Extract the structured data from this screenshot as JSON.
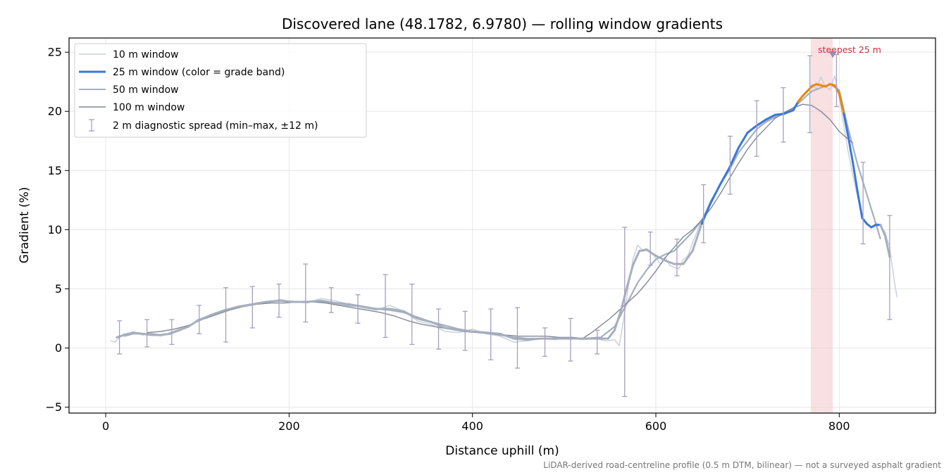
{
  "chart_data": {
    "type": "line",
    "title": "Discovered lane (48.1782, 6.9780) — rolling window gradients",
    "xlabel": "Distance uphill (m)",
    "ylabel": "Gradient (%)",
    "xlim": [
      -40,
      905
    ],
    "ylim": [
      -5.5,
      26.2
    ],
    "x_ticks": [
      0,
      200,
      400,
      600,
      800
    ],
    "y_ticks": [
      -5,
      0,
      5,
      10,
      15,
      20,
      25
    ],
    "y_tick_labels": [
      "−5",
      "0",
      "5",
      "10",
      "15",
      "20",
      "25"
    ],
    "grid": true,
    "legend_position": "top-left",
    "legend": [
      "10 m window",
      "25 m window (color = grade band)",
      "50 m window",
      "100 m window",
      "2 m diagnostic spread (min–max, ±12 m)"
    ],
    "colors": {
      "w10": "#c7ced9",
      "w25": "#3a78d6",
      "w25_high": "#e8890a",
      "w50": "#a6afbf",
      "w100": "#818894",
      "errorbar": "#a69fc0",
      "band": "#f2c2c8",
      "annotation": "#c8323c"
    },
    "steepest_band": {
      "x_start": 769,
      "x_end": 793,
      "label": "steepest 25 m",
      "marker_x": 793,
      "marker_y": 24.8
    },
    "series": [
      {
        "name": "10 m window",
        "x": [
          5,
          10,
          15,
          20,
          30,
          40,
          50,
          60,
          70,
          80,
          90,
          100,
          115,
          130,
          145,
          160,
          175,
          190,
          205,
          220,
          235,
          250,
          265,
          280,
          295,
          310,
          325,
          340,
          355,
          370,
          385,
          400,
          415,
          430,
          445,
          460,
          475,
          490,
          505,
          520,
          535,
          545,
          555,
          560,
          565,
          570,
          575,
          580,
          585,
          590,
          595,
          600,
          605,
          610,
          615,
          620,
          625,
          630,
          635,
          640,
          650,
          660,
          670,
          680,
          690,
          700,
          710,
          720,
          730,
          740,
          750,
          760,
          765,
          770,
          775,
          780,
          785,
          790,
          795,
          800,
          805,
          810,
          815,
          820,
          825,
          830,
          835,
          840,
          845,
          850,
          855,
          860,
          863
        ],
        "y": [
          0.6,
          0.5,
          0.9,
          1.2,
          1.3,
          1.1,
          1.2,
          1.0,
          1.3,
          1.6,
          1.8,
          2.4,
          2.8,
          3.2,
          3.5,
          3.7,
          3.8,
          4.1,
          3.9,
          3.8,
          4.2,
          4.0,
          3.7,
          3.4,
          3.2,
          3.6,
          3.1,
          2.3,
          2.0,
          1.4,
          1.3,
          1.6,
          1.2,
          1.0,
          0.5,
          0.6,
          0.8,
          0.7,
          0.9,
          0.7,
          0.8,
          0.6,
          0.7,
          0.2,
          2.5,
          5.2,
          7.5,
          8.7,
          8.3,
          8.4,
          8.1,
          7.6,
          7.1,
          7.7,
          7.0,
          6.8,
          6.7,
          7.5,
          7.8,
          8.9,
          10.8,
          12.5,
          13.7,
          15.2,
          16.9,
          18.2,
          18.7,
          19.2,
          19.6,
          19.9,
          20.3,
          21.2,
          21.6,
          22.3,
          21.9,
          22.9,
          22.1,
          21.8,
          23.0,
          21.2,
          18.8,
          16.5,
          14.5,
          12.8,
          11.0,
          10.6,
          10.2,
          10.6,
          10.3,
          9.8,
          8.5,
          5.7,
          4.3
        ]
      },
      {
        "name": "25 m window (color = grade band)",
        "x": [
          12,
          20,
          30,
          40,
          50,
          60,
          70,
          80,
          90,
          100,
          115,
          130,
          145,
          160,
          175,
          190,
          205,
          220,
          235,
          250,
          265,
          280,
          295,
          310,
          325,
          340,
          355,
          370,
          385,
          400,
          415,
          430,
          445,
          460,
          475,
          490,
          505,
          520,
          535,
          548,
          555,
          562,
          568,
          575,
          582,
          590,
          600,
          610,
          620,
          630,
          640,
          650,
          660,
          670,
          680,
          690,
          700,
          710,
          720,
          730,
          740,
          750,
          755,
          760,
          765,
          770,
          775,
          780,
          785,
          790,
          795,
          800,
          805,
          810,
          815,
          820,
          825,
          830,
          835,
          840,
          845,
          850,
          855
        ],
        "y": [
          0.9,
          1.1,
          1.3,
          1.2,
          1.1,
          1.1,
          1.2,
          1.5,
          1.8,
          2.3,
          2.8,
          3.2,
          3.5,
          3.7,
          3.9,
          4.0,
          3.9,
          3.9,
          4.0,
          3.8,
          3.7,
          3.5,
          3.3,
          3.3,
          3.1,
          2.5,
          2.2,
          1.7,
          1.5,
          1.4,
          1.3,
          1.2,
          0.8,
          0.7,
          0.8,
          0.8,
          0.8,
          0.8,
          0.8,
          0.8,
          1.5,
          3.2,
          5.0,
          7.0,
          8.2,
          8.3,
          7.8,
          7.4,
          7.1,
          7.1,
          8.2,
          10.5,
          12.3,
          13.8,
          15.2,
          16.9,
          18.2,
          18.8,
          19.3,
          19.7,
          19.8,
          20.1,
          20.8,
          21.3,
          21.7,
          22.1,
          22.3,
          22.2,
          22.1,
          22.3,
          22.2,
          21.5,
          19.8,
          17.8,
          15.6,
          13.2,
          11.0,
          10.5,
          10.2,
          10.4,
          10.4,
          9.5,
          7.7
        ],
        "high_band_x_range": [
          755,
          805
        ]
      },
      {
        "name": "50 m window",
        "x": [
          20,
          30,
          40,
          50,
          60,
          70,
          80,
          90,
          100,
          115,
          130,
          145,
          160,
          175,
          190,
          205,
          220,
          235,
          250,
          265,
          280,
          295,
          310,
          325,
          340,
          355,
          370,
          385,
          400,
          415,
          430,
          445,
          460,
          475,
          490,
          505,
          520,
          540,
          555,
          570,
          580,
          590,
          600,
          610,
          620,
          630,
          640,
          650,
          660,
          670,
          680,
          690,
          700,
          710,
          720,
          730,
          740,
          750,
          760,
          770,
          780,
          790,
          800,
          810,
          820,
          830,
          840,
          845
        ],
        "y": [
          1.0,
          1.2,
          1.2,
          1.2,
          1.1,
          1.2,
          1.5,
          1.8,
          2.3,
          2.8,
          3.2,
          3.5,
          3.7,
          3.9,
          4.0,
          3.9,
          3.9,
          3.9,
          3.8,
          3.6,
          3.5,
          3.3,
          3.2,
          3.0,
          2.6,
          2.2,
          1.9,
          1.6,
          1.4,
          1.3,
          1.1,
          0.9,
          0.8,
          0.8,
          0.8,
          0.8,
          0.8,
          0.9,
          1.8,
          4.0,
          5.5,
          6.6,
          7.5,
          7.9,
          8.2,
          9.0,
          9.8,
          10.8,
          12.2,
          13.8,
          15.0,
          16.5,
          17.5,
          18.5,
          19.1,
          19.5,
          19.8,
          20.3,
          21.0,
          21.7,
          22.0,
          22.3,
          21.8,
          18.5,
          15.5,
          13.0,
          10.5,
          9.2
        ]
      },
      {
        "name": "100 m window",
        "x": [
          45,
          60,
          75,
          90,
          105,
          120,
          135,
          150,
          165,
          180,
          195,
          210,
          225,
          240,
          255,
          270,
          285,
          300,
          315,
          330,
          345,
          360,
          375,
          390,
          405,
          420,
          435,
          450,
          465,
          480,
          495,
          510,
          520,
          530,
          540,
          550,
          560,
          570,
          580,
          590,
          600,
          610,
          620,
          630,
          640,
          650,
          660,
          670,
          680,
          690,
          700,
          710,
          720,
          730,
          740,
          750,
          760,
          770,
          780,
          790,
          800,
          815
        ],
        "y": [
          1.3,
          1.4,
          1.6,
          1.9,
          2.4,
          2.8,
          3.2,
          3.5,
          3.7,
          3.8,
          3.8,
          3.9,
          3.9,
          3.8,
          3.6,
          3.4,
          3.2,
          3.0,
          2.7,
          2.3,
          2.0,
          1.8,
          1.6,
          1.4,
          1.3,
          1.2,
          1.1,
          1.0,
          1.0,
          1.0,
          0.9,
          0.9,
          0.8,
          1.3,
          1.9,
          2.5,
          3.2,
          3.9,
          4.6,
          5.5,
          6.5,
          7.6,
          8.5,
          9.4,
          10.0,
          10.8,
          11.8,
          13.0,
          14.3,
          15.6,
          16.8,
          17.8,
          18.6,
          19.4,
          19.9,
          20.3,
          20.6,
          20.5,
          20.0,
          19.3,
          18.3,
          17.3
        ]
      }
    ],
    "errorbars": {
      "name": "2 m diagnostic spread (min–max, ±12 m)",
      "x": [
        15,
        45,
        72,
        102,
        131,
        160,
        189,
        218,
        246,
        275,
        305,
        334,
        363,
        392,
        420,
        449,
        479,
        507,
        536,
        566,
        594,
        623,
        652,
        681,
        710,
        739,
        768,
        797,
        826,
        855
      ],
      "min": [
        -0.5,
        0.1,
        0.3,
        1.2,
        0.5,
        1.7,
        2.6,
        2.2,
        3.0,
        2.1,
        0.9,
        0.3,
        -0.1,
        -0.2,
        -1.0,
        -1.7,
        -0.7,
        -1.1,
        -0.5,
        -4.1,
        7.0,
        6.1,
        8.9,
        13.0,
        16.2,
        17.4,
        18.2,
        20.4,
        8.8,
        2.4
      ],
      "max": [
        2.3,
        2.4,
        2.4,
        3.6,
        5.1,
        5.2,
        5.4,
        7.1,
        5.1,
        4.5,
        6.2,
        5.4,
        3.3,
        3.1,
        3.3,
        3.4,
        1.7,
        2.5,
        1.5,
        10.2,
        9.8,
        9.2,
        13.8,
        17.9,
        20.9,
        22.0,
        24.7,
        24.8,
        15.7,
        11.2
      ]
    }
  },
  "footnote": "LiDAR-derived road-centreline profile (0.5 m DTM, bilinear) — not a surveyed asphalt gradient"
}
